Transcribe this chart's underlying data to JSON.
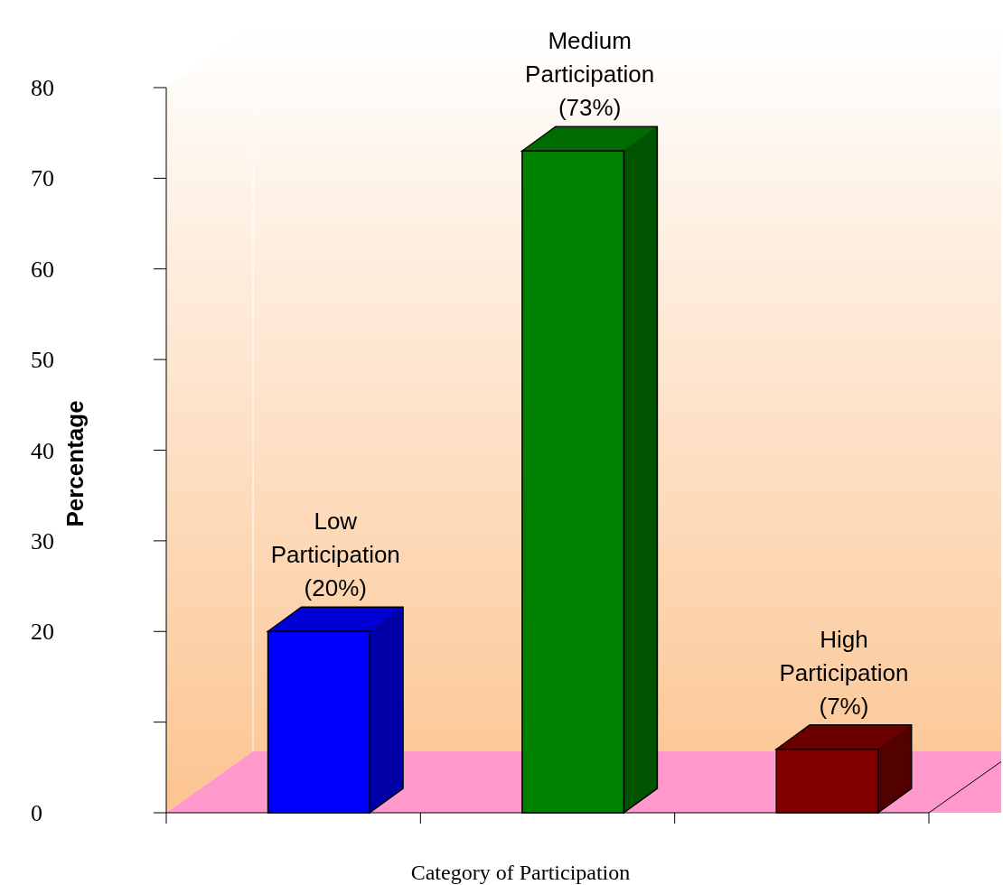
{
  "chart_data": {
    "type": "bar",
    "xlabel": "Category of Participation",
    "ylabel": "Percentage",
    "categories": [
      null,
      null,
      null
    ],
    "values": [
      20,
      73,
      7
    ],
    "colors": [
      "#0000ff",
      "#008000",
      "#800000"
    ],
    "value_labels": [
      "Low Participation (20%)",
      "Medium Participation (73%)",
      "High Participation (7%)"
    ],
    "ylim": [
      0,
      80
    ],
    "yticks": [
      0,
      {
        "value": 10,
        "label": null
      },
      20,
      30,
      40,
      50,
      60,
      70,
      80
    ],
    "grid": false
  }
}
